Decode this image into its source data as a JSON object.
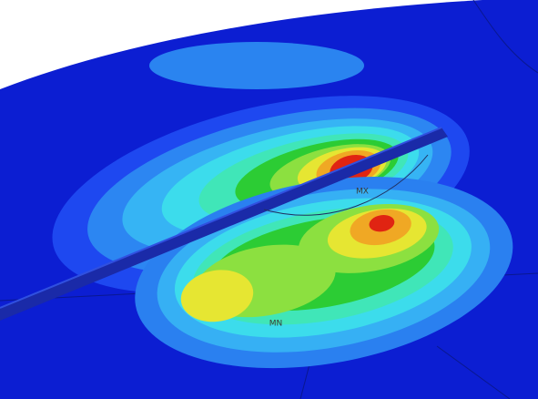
{
  "labels": {
    "max": "MX",
    "min": "MN"
  }
}
